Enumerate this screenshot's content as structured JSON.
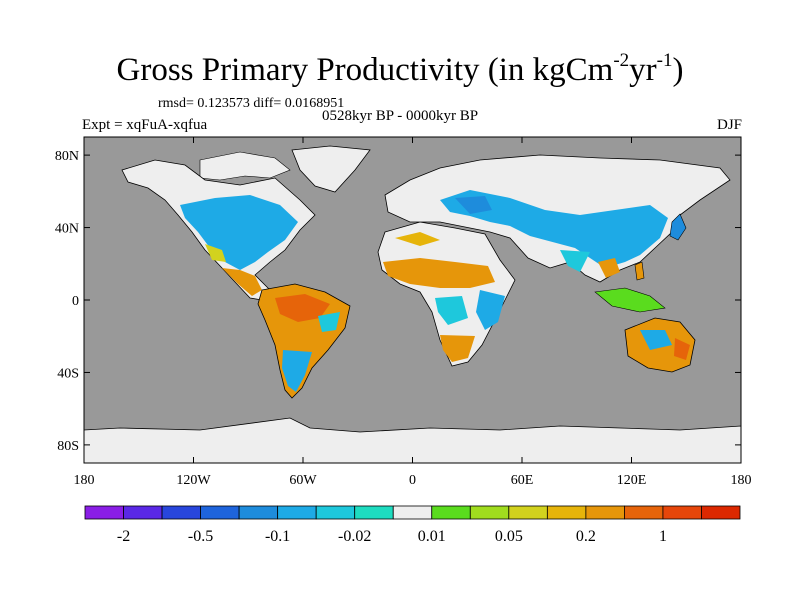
{
  "title": {
    "main": "Gross Primary Productivity (in kgCm",
    "exp1": "-2",
    "mid": "yr",
    "exp2": "-1",
    "close": ")"
  },
  "stats": "rmsd= 0.123573 diff= 0.0168951",
  "period": "0528kyr BP - 0000kyr BP",
  "experiment": "Expt = xqFuA-xqfua",
  "season": "DJF",
  "map": {
    "ocean_color": "#999999",
    "land_nodata_color": "#eeeeee",
    "lat_ticks": [
      {
        "value": 80,
        "label": "80N"
      },
      {
        "value": 40,
        "label": "40N"
      },
      {
        "value": 0,
        "label": "0"
      },
      {
        "value": -40,
        "label": "40S"
      },
      {
        "value": -80,
        "label": "80S"
      }
    ],
    "lon_ticks": [
      {
        "value": -180,
        "label": "180"
      },
      {
        "value": -120,
        "label": "120W"
      },
      {
        "value": -60,
        "label": "60W"
      },
      {
        "value": 0,
        "label": "0"
      },
      {
        "value": 60,
        "label": "60E"
      },
      {
        "value": 120,
        "label": "120E"
      },
      {
        "value": 180,
        "label": "180"
      }
    ]
  },
  "colorbar": {
    "colors": [
      "#8a1ee6",
      "#5a28e6",
      "#2846dc",
      "#1e64dc",
      "#1e8cdc",
      "#1eaae6",
      "#1ec8dc",
      "#1edcc0",
      "#eeeeee",
      "#5adc1e",
      "#a0dc1e",
      "#d2d21e",
      "#e6b40a",
      "#e6960a",
      "#e6640a",
      "#e6460a",
      "#dc2800"
    ],
    "labels": [
      {
        "text": "-2",
        "boundary": 1
      },
      {
        "text": "-0.5",
        "boundary": 3
      },
      {
        "text": "-0.1",
        "boundary": 5
      },
      {
        "text": "-0.02",
        "boundary": 7
      },
      {
        "text": "0.01",
        "boundary": 9
      },
      {
        "text": "0.05",
        "boundary": 11
      },
      {
        "text": "0.2",
        "boundary": 13
      },
      {
        "text": "1",
        "boundary": 15
      }
    ]
  }
}
